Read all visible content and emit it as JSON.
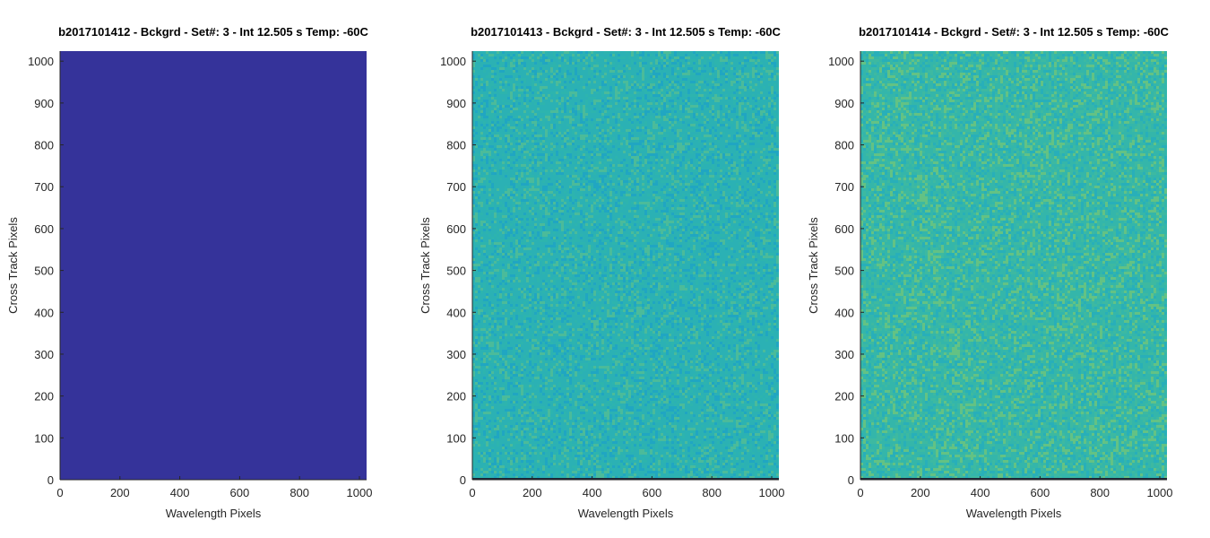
{
  "chart_data": [
    {
      "type": "heatmap",
      "title": "b2017101412 - Bckgrd - Set#: 3 - Int 12.505 s Temp: -60C",
      "xlabel": "Wavelength Pixels",
      "ylabel": "Cross Track Pixels",
      "xlim": [
        0,
        1024
      ],
      "ylim": [
        0,
        1024
      ],
      "xticks": [
        0,
        200,
        400,
        600,
        800,
        1000
      ],
      "yticks": [
        0,
        100,
        200,
        300,
        400,
        500,
        600,
        700,
        800,
        900,
        1000
      ],
      "grid": false,
      "base_color": "#35339a",
      "noise_colors": [
        "#35339a",
        "#3638a0"
      ],
      "noise_level": 0.0
    },
    {
      "type": "heatmap",
      "title": "b2017101413 - Bckgrd - Set#: 3 - Int 12.505 s Temp: -60C",
      "xlabel": "Wavelength Pixels",
      "ylabel": "Cross Track Pixels",
      "xlim": [
        0,
        1024
      ],
      "ylim": [
        0,
        1024
      ],
      "xticks": [
        0,
        200,
        400,
        600,
        800,
        1000
      ],
      "yticks": [
        0,
        100,
        200,
        300,
        400,
        500,
        600,
        700,
        800,
        900,
        1000
      ],
      "grid": false,
      "base_color": "#2bb1b4",
      "noise_colors": [
        "#1fa5c4",
        "#2eb5ad",
        "#51bd95"
      ],
      "noise_level": 0.5
    },
    {
      "type": "heatmap",
      "title": "b2017101414 - Bckgrd - Set#: 3 - Int 12.505 s Temp: -60C",
      "xlabel": "Wavelength Pixels",
      "ylabel": "Cross Track Pixels",
      "xlim": [
        0,
        1024
      ],
      "ylim": [
        0,
        1024
      ],
      "xticks": [
        0,
        200,
        400,
        600,
        800,
        1000
      ],
      "yticks": [
        0,
        100,
        200,
        300,
        400,
        500,
        600,
        700,
        800,
        900,
        1000
      ],
      "grid": false,
      "base_color": "#34b6aa",
      "noise_colors": [
        "#27aebc",
        "#40baa0",
        "#6cc47e"
      ],
      "noise_level": 0.6
    }
  ]
}
